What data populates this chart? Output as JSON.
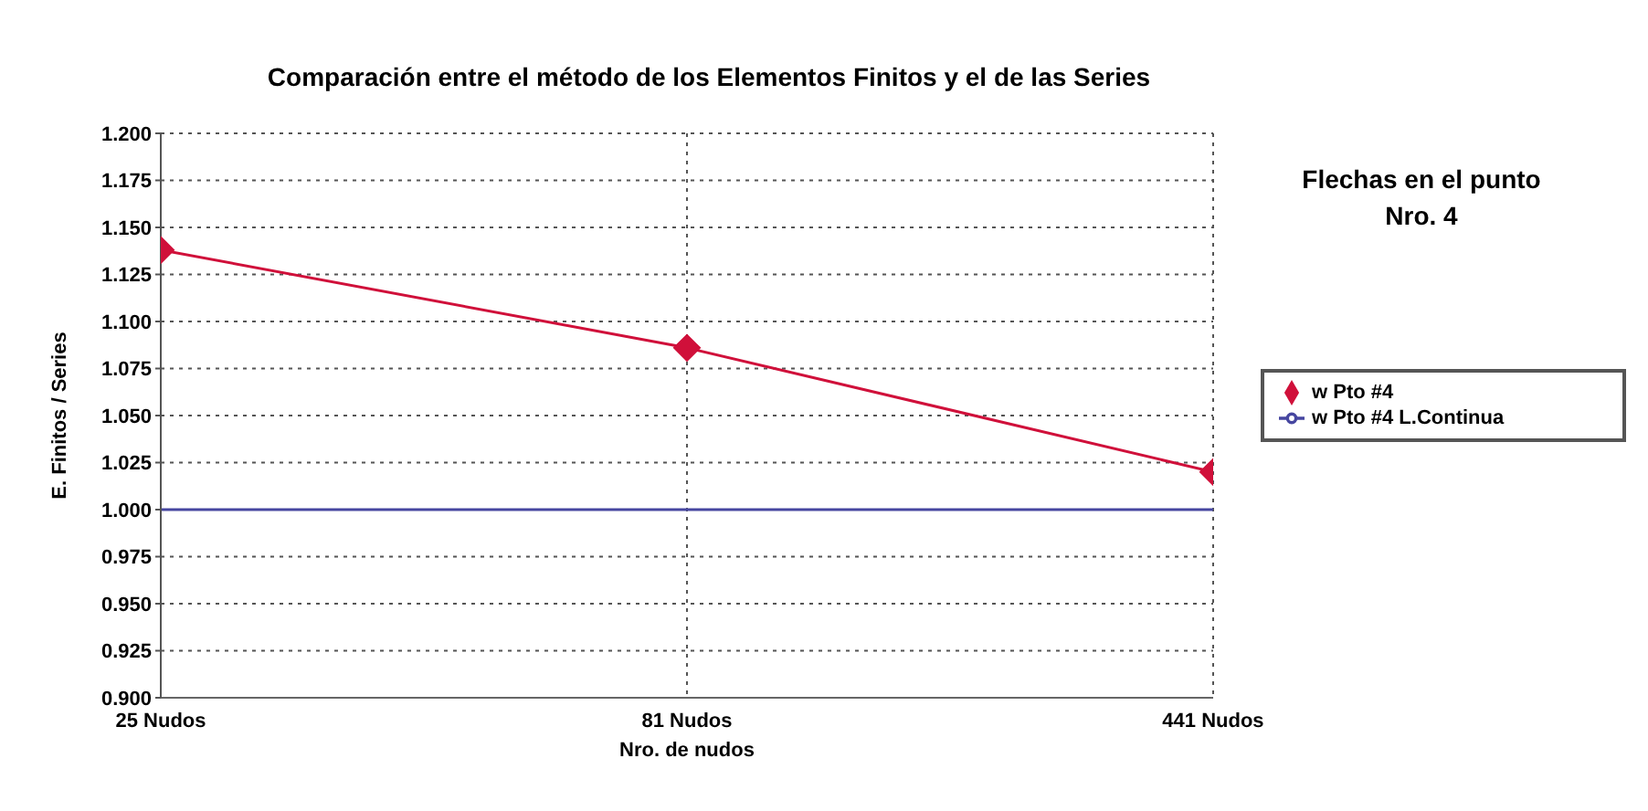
{
  "chart_data": {
    "type": "line",
    "title": "Comparación entre el método de los Elementos Finitos y el de las Series",
    "xlabel": "Nro. de nudos",
    "ylabel": "E. Finitos / Series",
    "categories": [
      "25 Nudos",
      "81 Nudos",
      "441 Nudos"
    ],
    "series": [
      {
        "name": "w Pto #4 L.Continua",
        "color": "#4646a0",
        "values": [
          1.0,
          1.0,
          1.0
        ],
        "marker": "none"
      },
      {
        "name": "w Pto #4",
        "color": "#d0103a",
        "values": [
          1.138,
          1.086,
          1.02
        ],
        "marker": "diamond"
      }
    ],
    "ylim": [
      0.9,
      1.2
    ],
    "yticks": [
      {
        "value": 0.9,
        "label": "0.900"
      },
      {
        "value": 0.925,
        "label": "0.925"
      },
      {
        "value": 0.95,
        "label": "0.950"
      },
      {
        "value": 0.975,
        "label": "0.975"
      },
      {
        "value": 1.0,
        "label": "1.000"
      },
      {
        "value": 1.025,
        "label": "1.025"
      },
      {
        "value": 1.05,
        "label": "1.050"
      },
      {
        "value": 1.075,
        "label": "1.075"
      },
      {
        "value": 1.1,
        "label": "1.100"
      },
      {
        "value": 1.125,
        "label": "1.125"
      },
      {
        "value": 1.15,
        "label": "1.150"
      },
      {
        "value": 1.175,
        "label": "1.175"
      },
      {
        "value": 1.2,
        "label": "1.200"
      }
    ],
    "grid": true,
    "legend": "right",
    "annotations": [
      "Flechas en el punto Nro. 4"
    ]
  }
}
